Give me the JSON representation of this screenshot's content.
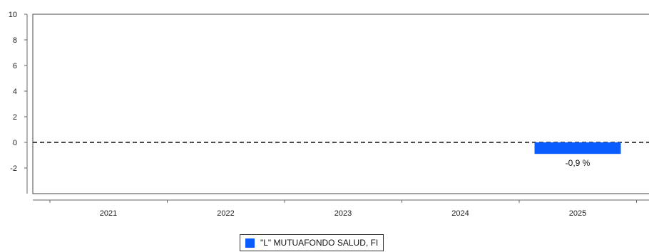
{
  "chart_data": {
    "type": "bar",
    "categories": [
      "2021",
      "2022",
      "2023",
      "2024",
      "2025"
    ],
    "series": [
      {
        "name": "\"L\" MUTUAFONDO SALUD, FI",
        "color": "#0a5cff",
        "values": [
          null,
          null,
          null,
          null,
          -0.9
        ],
        "labels": [
          null,
          null,
          null,
          null,
          "-0,9 %"
        ]
      }
    ],
    "ylim": [
      -4,
      10
    ],
    "yticks": [
      10,
      8,
      6,
      4,
      2,
      0,
      -2
    ],
    "ytick_labels": [
      "10",
      "8",
      "6",
      "4",
      "2",
      "0",
      "-2"
    ],
    "zero_line": "dashed",
    "grid": false,
    "legend_position": "bottom-center"
  }
}
